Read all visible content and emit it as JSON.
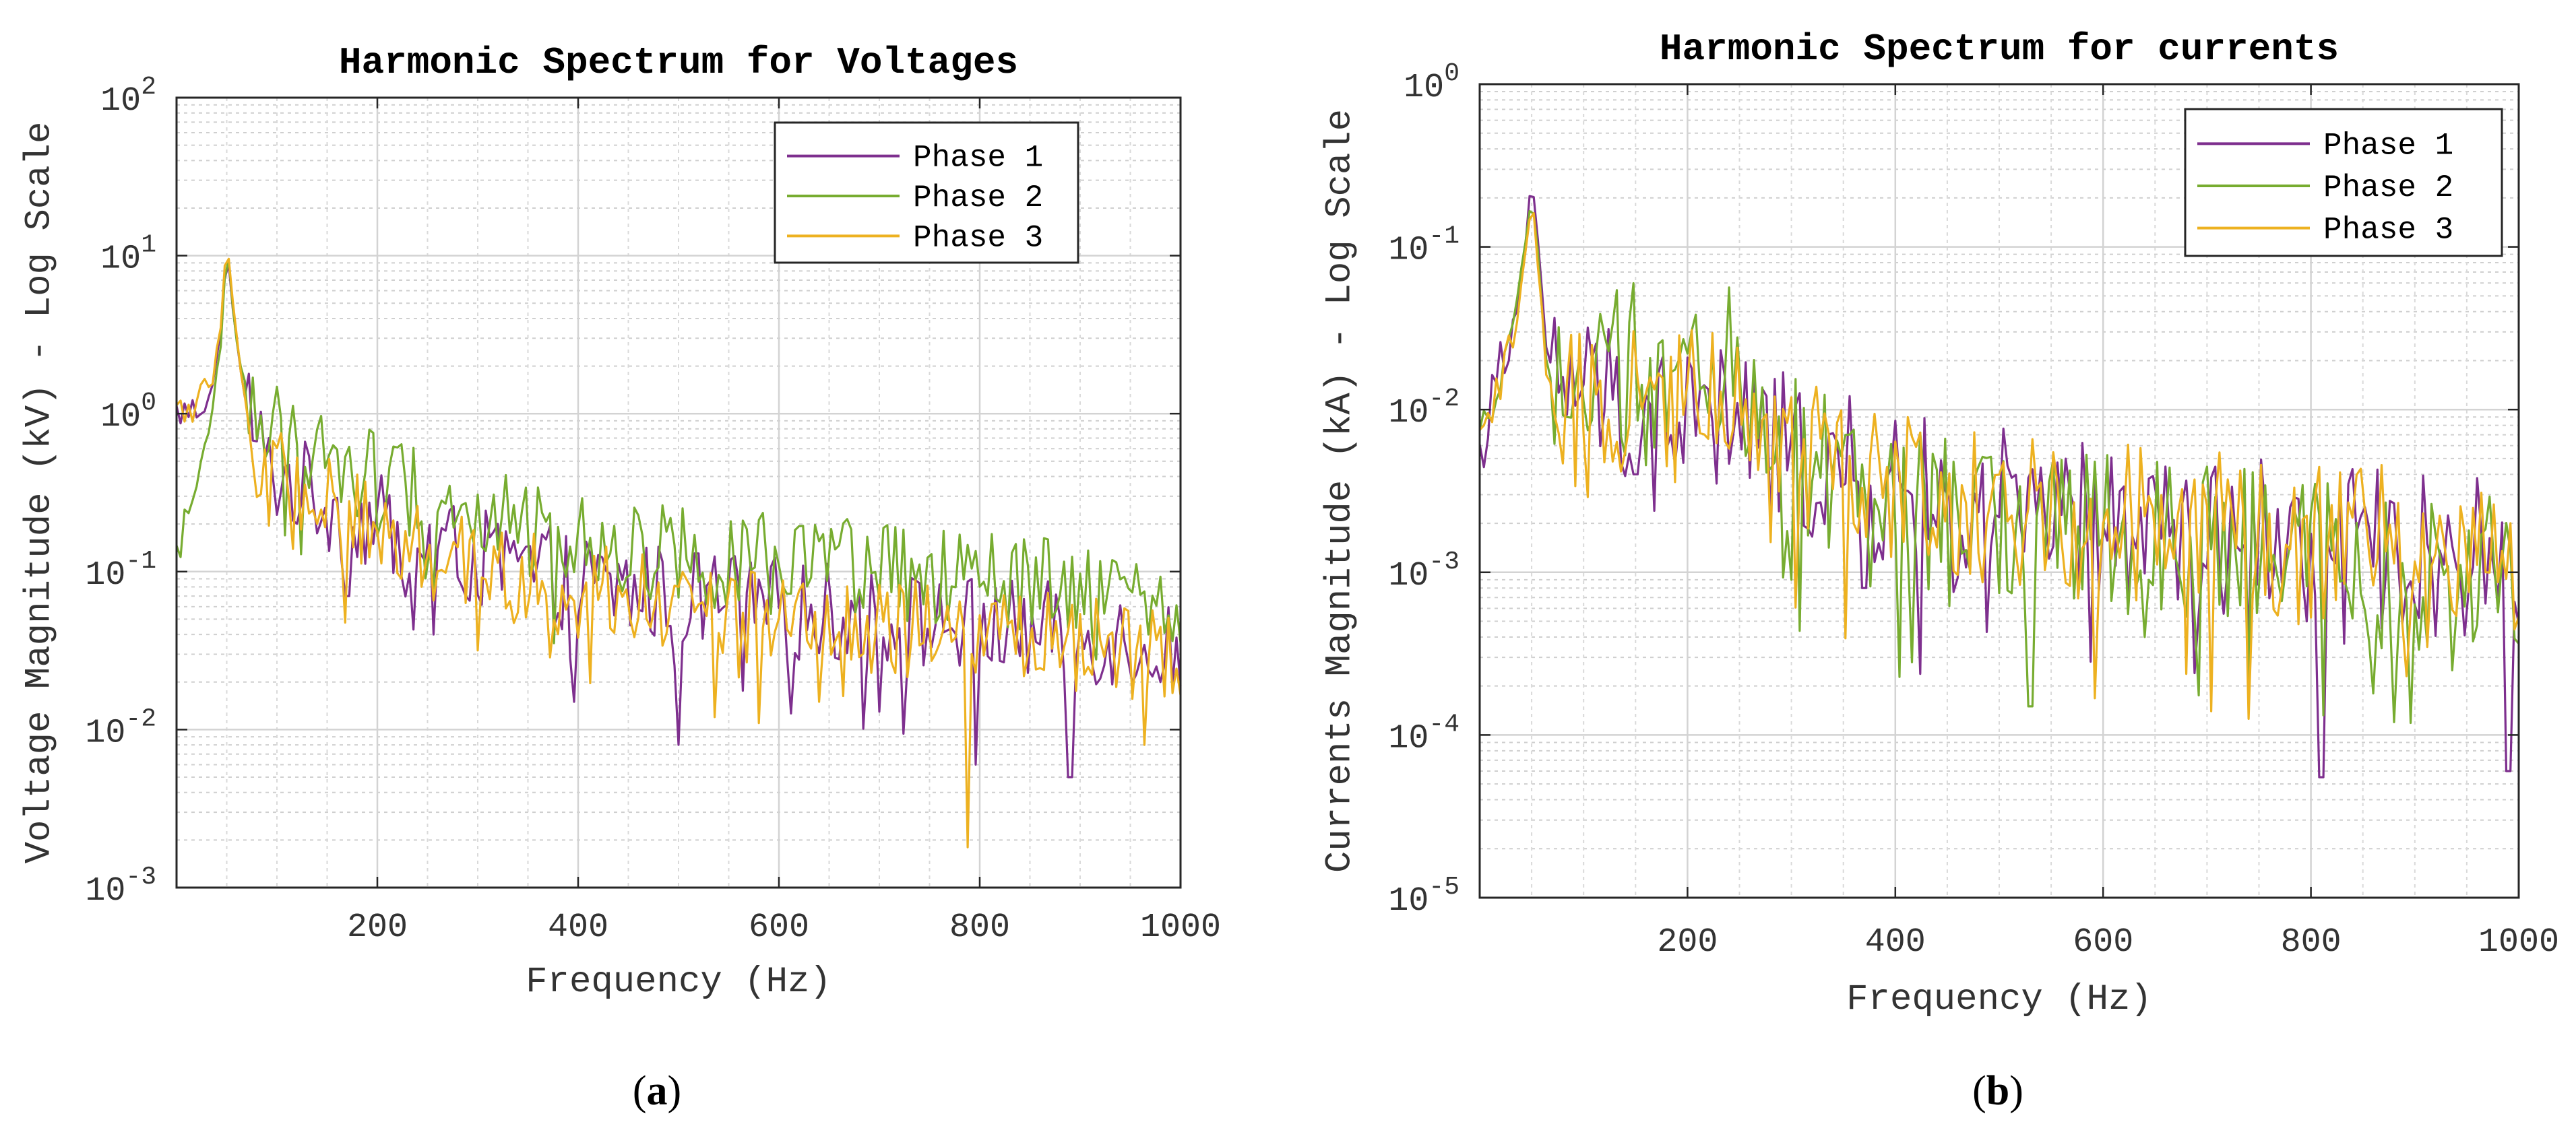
{
  "chart_data": [
    {
      "panel": "a",
      "type": "line",
      "title": "Harmonic Spectrum for Voltages",
      "xlabel": "Frequency (Hz)",
      "ylabel": "Voltage Magnitude (kV) - Log Scale",
      "xlim": [
        0,
        1000
      ],
      "ylim": [
        0.001,
        100
      ],
      "yscale": "log",
      "grid": true,
      "minor_grid": true,
      "legend_position": "top-right",
      "caption": "(a)",
      "x_ticks": [
        "200",
        "400",
        "600",
        "800",
        "1000"
      ],
      "y_ticks": [
        {
          "base": "10",
          "exp": "-3"
        },
        {
          "base": "10",
          "exp": "-2"
        },
        {
          "base": "10",
          "exp": "-1"
        },
        {
          "base": "10",
          "exp": "0"
        },
        {
          "base": "10",
          "exp": "1"
        },
        {
          "base": "10",
          "exp": "2"
        }
      ],
      "series": [
        {
          "name": "Phase 1",
          "color": "#7E2F8E",
          "anchors": [
            [
              0,
              1.0
            ],
            [
              20,
              1.05
            ],
            [
              35,
              1.4
            ],
            [
              45,
              3.5
            ],
            [
              50,
              13
            ],
            [
              55,
              5
            ],
            [
              65,
              1.6
            ],
            [
              80,
              0.7
            ],
            [
              90,
              0.45
            ],
            [
              120,
              0.35
            ],
            [
              160,
              0.25
            ],
            [
              200,
              0.2
            ],
            [
              250,
              0.15
            ],
            [
              300,
              0.12
            ],
            [
              350,
              0.1
            ],
            [
              400,
              0.085
            ],
            [
              500,
              0.07
            ],
            [
              600,
              0.06
            ],
            [
              700,
              0.05
            ],
            [
              800,
              0.045
            ],
            [
              900,
              0.04
            ],
            [
              1000,
              0.035
            ]
          ]
        },
        {
          "name": "Phase 2",
          "color": "#77AC30",
          "anchors": [
            [
              0,
              0.13
            ],
            [
              20,
              0.35
            ],
            [
              35,
              1.0
            ],
            [
              45,
              3.2
            ],
            [
              50,
              13
            ],
            [
              55,
              5
            ],
            [
              65,
              1.8
            ],
            [
              80,
              1.0
            ],
            [
              100,
              0.75
            ],
            [
              150,
              0.55
            ],
            [
              200,
              0.4
            ],
            [
              250,
              0.3
            ],
            [
              300,
              0.22
            ],
            [
              350,
              0.18
            ],
            [
              400,
              0.16
            ],
            [
              500,
              0.13
            ],
            [
              600,
              0.11
            ],
            [
              700,
              0.1
            ],
            [
              800,
              0.085
            ],
            [
              900,
              0.075
            ],
            [
              1000,
              0.065
            ]
          ]
        },
        {
          "name": "Phase 3",
          "color": "#EDB120",
          "anchors": [
            [
              0,
              1.0
            ],
            [
              20,
              1.1
            ],
            [
              35,
              1.5
            ],
            [
              45,
              4.0
            ],
            [
              50,
              14
            ],
            [
              55,
              5.5
            ],
            [
              65,
              1.7
            ],
            [
              80,
              0.6
            ],
            [
              90,
              0.4
            ],
            [
              120,
              0.33
            ],
            [
              160,
              0.24
            ],
            [
              200,
              0.19
            ],
            [
              250,
              0.14
            ],
            [
              300,
              0.11
            ],
            [
              350,
              0.09
            ],
            [
              400,
              0.075
            ],
            [
              500,
              0.06
            ],
            [
              600,
              0.05
            ],
            [
              700,
              0.045
            ],
            [
              800,
              0.04
            ],
            [
              900,
              0.035
            ],
            [
              1000,
              0.03
            ]
          ]
        }
      ],
      "dips": [
        [
          170,
          0.07,
          0
        ],
        [
          255,
          0.04,
          0
        ],
        [
          395,
          0.015,
          0
        ],
        [
          500,
          0.008,
          0
        ],
        [
          535,
          0.012,
          2
        ],
        [
          580,
          0.011,
          2
        ],
        [
          640,
          0.015,
          2
        ],
        [
          700,
          0.013,
          0
        ],
        [
          787,
          0.0018,
          2
        ],
        [
          795,
          0.006,
          0
        ],
        [
          890,
          0.005,
          0
        ],
        [
          965,
          0.008,
          2
        ],
        [
          980,
          0.02,
          0
        ]
      ]
    },
    {
      "panel": "b",
      "type": "line",
      "title": "Harmonic Spectrum for currents",
      "xlabel": "Frequency (Hz)",
      "ylabel": "Currents Magnitude (kA) - Log Scale",
      "xlim": [
        0,
        1000
      ],
      "ylim": [
        1e-05,
        1
      ],
      "yscale": "log",
      "grid": true,
      "minor_grid": true,
      "legend_position": "top-right",
      "caption": "(b)",
      "x_ticks": [
        "200",
        "400",
        "600",
        "800",
        "1000"
      ],
      "y_ticks": [
        {
          "base": "10",
          "exp": "-5"
        },
        {
          "base": "10",
          "exp": "-4"
        },
        {
          "base": "10",
          "exp": "-3"
        },
        {
          "base": "10",
          "exp": "-2"
        },
        {
          "base": "10",
          "exp": "-1"
        },
        {
          "base": "10",
          "exp": "0"
        }
      ],
      "series": [
        {
          "name": "Phase 1",
          "color": "#7E2F8E",
          "anchors": [
            [
              0,
              0.005
            ],
            [
              20,
              0.02
            ],
            [
              35,
              0.04
            ],
            [
              45,
              0.12
            ],
            [
              50,
              0.26
            ],
            [
              55,
              0.12
            ],
            [
              65,
              0.02
            ],
            [
              100,
              0.013
            ],
            [
              150,
              0.011
            ],
            [
              200,
              0.009
            ],
            [
              250,
              0.008
            ],
            [
              300,
              0.005
            ],
            [
              350,
              0.004
            ],
            [
              400,
              0.003
            ],
            [
              500,
              0.0025
            ],
            [
              600,
              0.002
            ],
            [
              700,
              0.0017
            ],
            [
              800,
              0.0015
            ],
            [
              900,
              0.0013
            ],
            [
              1000,
              0.0012
            ]
          ]
        },
        {
          "name": "Phase 2",
          "color": "#77AC30",
          "anchors": [
            [
              0,
              0.006
            ],
            [
              20,
              0.02
            ],
            [
              35,
              0.04
            ],
            [
              45,
              0.12
            ],
            [
              50,
              0.24
            ],
            [
              55,
              0.1
            ],
            [
              65,
              0.018
            ],
            [
              100,
              0.014
            ],
            [
              150,
              0.02
            ],
            [
              200,
              0.012
            ],
            [
              248,
              0.02
            ],
            [
              300,
              0.005
            ],
            [
              350,
              0.004
            ],
            [
              400,
              0.0025
            ],
            [
              500,
              0.002
            ],
            [
              600,
              0.0017
            ],
            [
              700,
              0.0015
            ],
            [
              800,
              0.0012
            ],
            [
              900,
              0.001
            ],
            [
              1000,
              0.0009
            ]
          ]
        },
        {
          "name": "Phase 3",
          "color": "#EDB120",
          "anchors": [
            [
              0,
              0.006
            ],
            [
              20,
              0.015
            ],
            [
              35,
              0.03
            ],
            [
              45,
              0.1
            ],
            [
              50,
              0.2
            ],
            [
              55,
              0.1
            ],
            [
              65,
              0.015
            ],
            [
              100,
              0.012
            ],
            [
              150,
              0.012
            ],
            [
              200,
              0.01
            ],
            [
              248,
              0.017
            ],
            [
              300,
              0.006
            ],
            [
              350,
              0.005
            ],
            [
              400,
              0.003
            ],
            [
              500,
              0.0025
            ],
            [
              600,
              0.002
            ],
            [
              700,
              0.0018
            ],
            [
              800,
              0.0016
            ],
            [
              900,
              0.0014
            ],
            [
              1000,
              0.0013
            ]
          ]
        }
      ],
      "dips": [
        [
          150,
          0.004,
          0
        ],
        [
          300,
          0.0009,
          1
        ],
        [
          370,
          0.0008,
          0
        ],
        [
          415,
          0.00028,
          1
        ],
        [
          530,
          0.00015,
          1
        ],
        [
          640,
          0.0004,
          1
        ],
        [
          705,
          0.00014,
          2
        ],
        [
          810,
          5.5e-05,
          0
        ],
        [
          860,
          0.00018,
          1
        ],
        [
          880,
          0.00012,
          1
        ],
        [
          935,
          0.00025,
          1
        ],
        [
          990,
          6e-05,
          0
        ]
      ]
    }
  ]
}
